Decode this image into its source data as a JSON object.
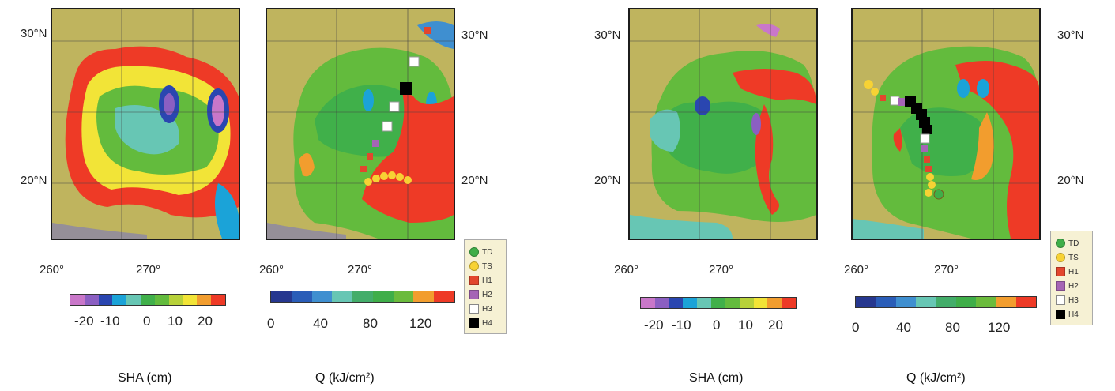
{
  "labels": {
    "lat_30": "30°N",
    "lat_20": "20°N",
    "lon_260": "260°",
    "lon_270": "270°"
  },
  "captions": {
    "sha": "SHA (cm)",
    "q": "Q (kJ/cm²)"
  },
  "sha_colorbar": {
    "ticks": [
      "-20",
      "-10",
      "0",
      "10",
      "20"
    ],
    "colors": [
      "#c977c9",
      "#8b5fc2",
      "#2a46b0",
      "#1ba3d8",
      "#67c6b4",
      "#40b04a",
      "#63bb3d",
      "#b7d13a",
      "#f2e437",
      "#f29d2e",
      "#ee3a26"
    ]
  },
  "q_colorbar": {
    "ticks": [
      "0",
      "40",
      "80",
      "120"
    ],
    "colors": [
      "#26378f",
      "#2a5db8",
      "#3f8fd0",
      "#67c6b4",
      "#43ad6a",
      "#3fae49",
      "#6bbb3c",
      "#f29d2e",
      "#ee3a26"
    ]
  },
  "legend": [
    {
      "label": "TD",
      "color": "#3fae49",
      "shape": "circle"
    },
    {
      "label": "TS",
      "color": "#f7d234",
      "shape": "circle"
    },
    {
      "label": "H1",
      "color": "#e2462e",
      "shape": "square"
    },
    {
      "label": "H2",
      "color": "#a564b5",
      "shape": "square"
    },
    {
      "label": "H3",
      "color": "#ffffff",
      "shape": "square"
    },
    {
      "label": "H4",
      "color": "#000000",
      "shape": "square"
    }
  ]
}
